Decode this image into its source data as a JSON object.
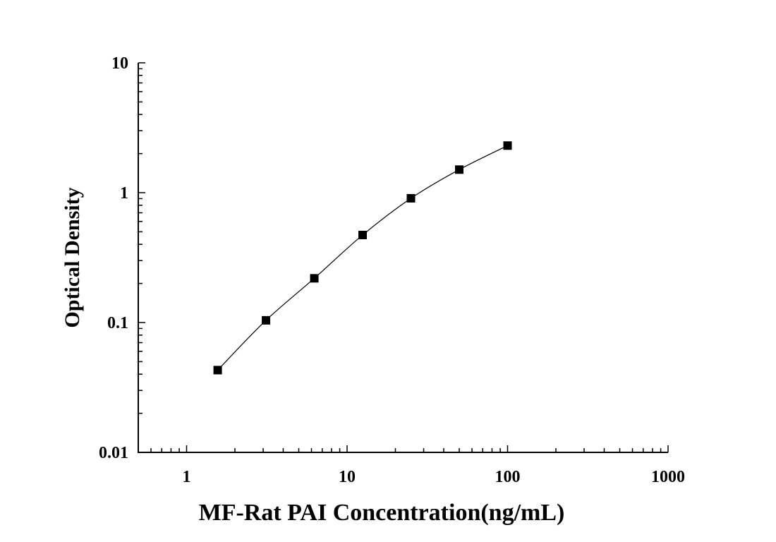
{
  "chart_data": {
    "type": "scatter",
    "xlabel": "MF-Rat PAI Concentration(ng/mL)",
    "ylabel": "Optical Density",
    "x_scale": "log",
    "y_scale": "log",
    "xlim": [
      0.5,
      1000
    ],
    "ylim": [
      0.01,
      10
    ],
    "x_ticks": [
      "1",
      "10",
      "100",
      "1000"
    ],
    "y_ticks": [
      "0.01",
      "0.1",
      "1",
      "10"
    ],
    "grid": false,
    "legend": "none",
    "marker_color": "#000000",
    "line_color": "#000000",
    "series": [
      {
        "x": [
          1.5625,
          3.125,
          6.25,
          12.5,
          25,
          50,
          100
        ],
        "y": [
          0.043,
          0.104,
          0.219,
          0.472,
          0.905,
          1.505,
          2.304
        ]
      }
    ]
  }
}
